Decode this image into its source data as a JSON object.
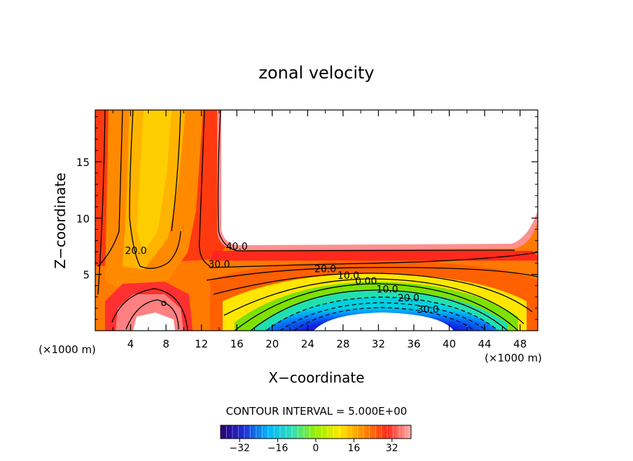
{
  "chart_data": {
    "type": "contour",
    "title": "zonal velocity",
    "xlabel": "X−coordinate",
    "ylabel": "Z−coordinate",
    "x_unit_left": "(×1000 m)",
    "x_unit_right": "(×1000 m)",
    "xlim": [
      0,
      50
    ],
    "ylim": [
      0,
      19.6
    ],
    "x_ticks": [
      4,
      8,
      12,
      16,
      20,
      24,
      28,
      32,
      36,
      40,
      44,
      48
    ],
    "y_ticks": [
      5,
      10,
      15
    ],
    "contour_interval_text": "CONTOUR INTERVAL = 5.000E+00",
    "contour_labels": [
      {
        "text": "20.0",
        "x": 4.6,
        "z": 6.8
      },
      {
        "text": "30.0",
        "x": 14.0,
        "z": 5.6
      },
      {
        "text": "40.0",
        "x": 16.0,
        "z": 7.2
      },
      {
        "text": "20.0",
        "x": 26.0,
        "z": 5.2
      },
      {
        "text": "10.0",
        "x": 28.6,
        "z": 4.6
      },
      {
        "text": "0.00",
        "x": 30.6,
        "z": 4.1
      },
      {
        "text": "10.0",
        "x": 33.0,
        "z": 3.4
      },
      {
        "text": "20.0",
        "x": 35.4,
        "z": 2.6
      },
      {
        "text": "30.0",
        "x": 37.6,
        "z": 1.6
      }
    ],
    "colorbar": {
      "range": [
        -40,
        40
      ],
      "ticks": [
        -32,
        -16,
        0,
        16,
        32
      ],
      "tick_labels": [
        "−32",
        "−16",
        "0",
        "16",
        "32"
      ],
      "colors": [
        "#2a0078",
        "#1f2fd8",
        "#00b8ff",
        "#2ee0b8",
        "#98f000",
        "#ffe600",
        "#ff8a00",
        "#ff2a1a",
        "#ffb2b2"
      ]
    }
  }
}
